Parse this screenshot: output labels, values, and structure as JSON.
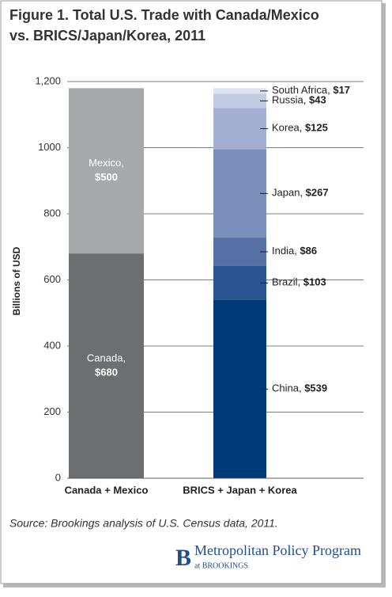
{
  "chart_data": {
    "type": "stacked_bar",
    "title": [
      "Figure 1. Total U.S. Trade with Canada/Mexico",
      "vs. BRICS/Japan/Korea, 2011"
    ],
    "y_label": "Billions of USD",
    "categories": [
      "Canada + Mexico",
      "BRICS + Japan + Korea"
    ],
    "series": [
      {
        "name": "Canada,",
        "color": "#6d6e70",
        "values": [
          680,
          null
        ],
        "value_labels": [
          "$680",
          null
        ]
      },
      {
        "name": "Mexico,",
        "color": "#a7a8aa",
        "values": [
          500,
          null
        ],
        "value_labels": [
          "$500",
          null
        ]
      },
      {
        "name": "China,",
        "color": "#003a78",
        "values": [
          null,
          539
        ],
        "value_labels": [
          null,
          "$539"
        ]
      },
      {
        "name": "Brazil,",
        "color": "#2b5591",
        "values": [
          null,
          103
        ],
        "value_labels": [
          null,
          "$103"
        ]
      },
      {
        "name": "India,",
        "color": "#566fa4",
        "values": [
          null,
          86
        ],
        "value_labels": [
          null,
          "$86"
        ]
      },
      {
        "name": "Japan,",
        "color": "#7b8fbd",
        "values": [
          null,
          267
        ],
        "value_labels": [
          null,
          "$267"
        ]
      },
      {
        "name": "Korea,",
        "color": "#a3b0d2",
        "values": [
          null,
          125
        ],
        "value_labels": [
          null,
          "$125"
        ]
      },
      {
        "name": "Russia,",
        "color": "#c2cbe2",
        "values": [
          null,
          43
        ],
        "value_labels": [
          null,
          "$43"
        ]
      },
      {
        "name": "South Africa,",
        "color": "#dde3f0",
        "values": [
          null,
          17
        ],
        "value_labels": [
          null,
          "$17"
        ]
      }
    ],
    "ylim": [
      0,
      1200
    ],
    "yticks": [
      0,
      200,
      400,
      600,
      800,
      1000,
      {
        "value": 1200,
        "label": "1,200"
      }
    ],
    "grid": true,
    "source": "Source: Brookings analysis of U.S. Census data, 2011.",
    "footer": {
      "logo": "B",
      "program": "Metropolitan Policy Program",
      "org": "at BROOKINGS"
    }
  }
}
